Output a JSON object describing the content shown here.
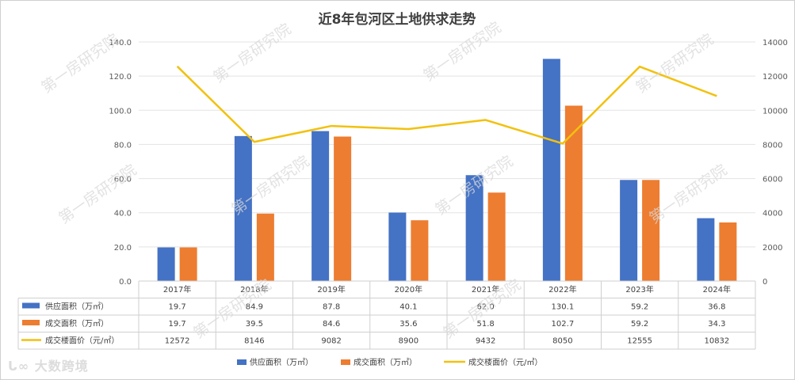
{
  "chart_data": {
    "type": "bar",
    "title": "近8年包河区土地供求走势",
    "categories": [
      "2017年",
      "2018年",
      "2019年",
      "2020年",
      "2021年",
      "2022年",
      "2023年",
      "2024年"
    ],
    "series": [
      {
        "name": "供应面积（万㎡）",
        "kind": "bar",
        "axis": "left",
        "color": "#4472C4",
        "values": [
          19.7,
          84.9,
          87.8,
          40.1,
          62.0,
          130.1,
          59.2,
          36.8
        ],
        "labels": [
          "19.7",
          "84.9",
          "87.8",
          "40.1",
          "62.0",
          "130.1",
          "59.2",
          "36.8"
        ]
      },
      {
        "name": "成交面积（万㎡）",
        "kind": "bar",
        "axis": "left",
        "color": "#ED7D31",
        "values": [
          19.7,
          39.5,
          84.6,
          35.6,
          51.8,
          102.7,
          59.2,
          34.3
        ],
        "labels": [
          "19.7",
          "39.5",
          "84.6",
          "35.6",
          "51.8",
          "102.7",
          "59.2",
          "34.3"
        ]
      },
      {
        "name": "成交楼面价（元/㎡）",
        "kind": "line",
        "axis": "right",
        "color": "#F2C10F",
        "values": [
          12572,
          8146,
          9082,
          8900,
          9432,
          8050,
          12555,
          10832
        ],
        "labels": [
          "12572",
          "8146",
          "9082",
          "8900",
          "9432",
          "8050",
          "12555",
          "10832"
        ]
      }
    ],
    "ylim_left": [
      0,
      140
    ],
    "yticks_left": [
      "0.0",
      "20.0",
      "40.0",
      "60.0",
      "80.0",
      "100.0",
      "120.0",
      "140.0"
    ],
    "ylim_right": [
      0,
      14000
    ],
    "yticks_right": [
      "0",
      "2000",
      "4000",
      "6000",
      "8000",
      "10000",
      "12000",
      "14000"
    ],
    "grid": true,
    "legend": "bottom",
    "data_table": true
  },
  "watermark": "第一房研究院",
  "brand": "大数跨境"
}
